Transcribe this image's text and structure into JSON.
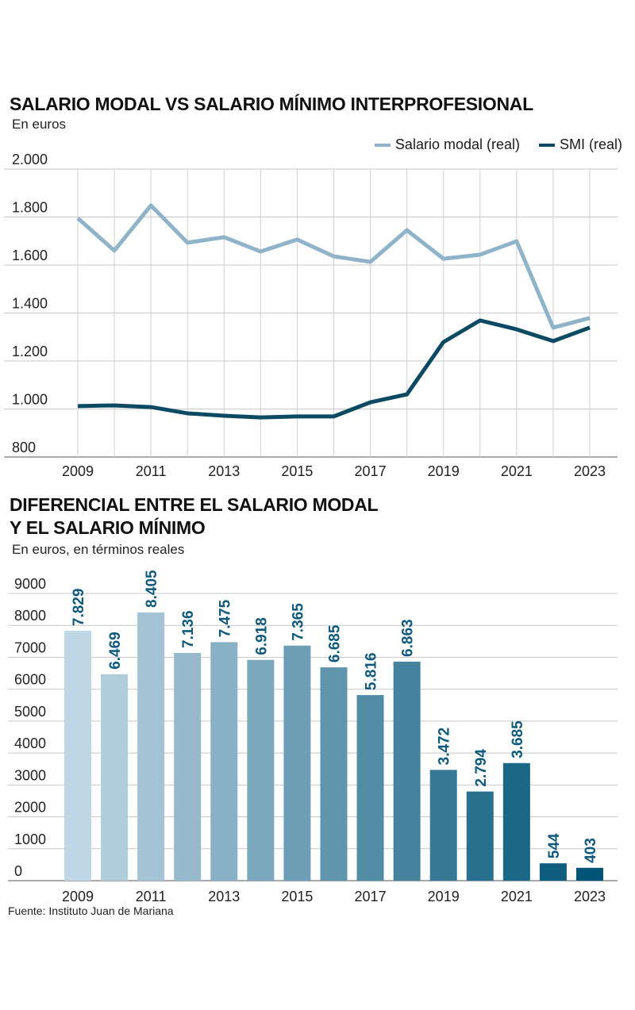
{
  "chart_data": [
    {
      "type": "line",
      "title": "SALARIO MODAL VS SALARIO MÍNIMO INTERPROFESIONAL",
      "subtitle": "En euros",
      "x": [
        2009,
        2010,
        2011,
        2012,
        2013,
        2014,
        2015,
        2016,
        2017,
        2018,
        2019,
        2020,
        2021,
        2022,
        2023
      ],
      "x_tick_labels": [
        "2009",
        "2011",
        "2013",
        "2015",
        "2017",
        "2019",
        "2021",
        "2023"
      ],
      "y_tick_labels": [
        "800",
        "1.000",
        "1.200",
        "1.400",
        "1.600",
        "1.800",
        "2.000"
      ],
      "ylim": [
        800,
        2000
      ],
      "grid": true,
      "legend": "top-right",
      "series": [
        {
          "name": "Salario modal (real)",
          "color": "#8fb3c9",
          "values": [
            1795,
            1660,
            1848,
            1693,
            1716,
            1656,
            1706,
            1636,
            1613,
            1745,
            1626,
            1643,
            1699,
            1339,
            1379
          ]
        },
        {
          "name": "SMI (real)",
          "color": "#0c4a63",
          "values": [
            1012,
            1015,
            1008,
            982,
            972,
            965,
            969,
            969,
            1028,
            1061,
            1279,
            1369,
            1332,
            1283,
            1339
          ]
        }
      ]
    },
    {
      "type": "bar",
      "title": "DIFERENCIAL ENTRE EL SALARIO MODAL\nY EL SALARIO MÍNIMO",
      "title_lines": [
        "DIFERENCIAL ENTRE EL SALARIO MODAL",
        "Y EL SALARIO MÍNIMO"
      ],
      "subtitle": "En euros, en términos reales",
      "categories": [
        2009,
        2010,
        2011,
        2012,
        2013,
        2014,
        2015,
        2016,
        2017,
        2018,
        2019,
        2020,
        2021,
        2022,
        2023
      ],
      "x_tick_labels": [
        "2009",
        "2011",
        "2013",
        "2015",
        "2017",
        "2019",
        "2021",
        "2023"
      ],
      "values": [
        7829,
        6469,
        8405,
        7136,
        7475,
        6918,
        7365,
        6685,
        5816,
        6863,
        3472,
        2794,
        3685,
        544,
        403
      ],
      "data_labels": [
        "7.829",
        "6.469",
        "8.405",
        "7.136",
        "7.475",
        "6.918",
        "7.365",
        "6.685",
        "5.816",
        "6.863",
        "3.472",
        "2.794",
        "3.685",
        "544",
        "403"
      ],
      "y_tick_labels": [
        "0",
        "1000",
        "2000",
        "3000",
        "4000",
        "5000",
        "6000",
        "7000",
        "8000",
        "9000"
      ],
      "ylim": [
        0,
        9000
      ],
      "grid": true,
      "colors": {
        "start": "#bfd6e4",
        "end": "#005476",
        "label": "#0e5a7c"
      }
    }
  ],
  "source": "Fuente: Instituto Juan de Mariana"
}
